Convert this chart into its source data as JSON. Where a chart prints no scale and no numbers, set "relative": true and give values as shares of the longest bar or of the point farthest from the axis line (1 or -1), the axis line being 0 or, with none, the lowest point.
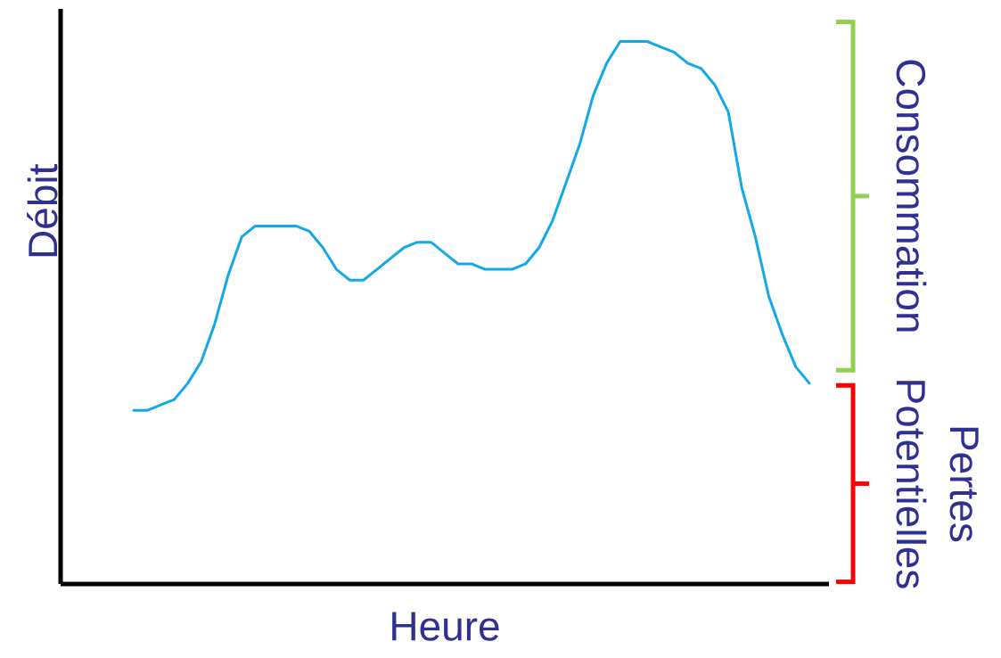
{
  "chart_data": {
    "type": "line",
    "relative": true,
    "xlabel": "Heure",
    "ylabel": "Débit",
    "categories": [
      null,
      null,
      null,
      null,
      null,
      null,
      null,
      null,
      null,
      null,
      null,
      null,
      null,
      null,
      null,
      null,
      null,
      null,
      null,
      null,
      null,
      null,
      null,
      null,
      null,
      null,
      null,
      null,
      null,
      null,
      null,
      null,
      null,
      null,
      null,
      null,
      null,
      null,
      null,
      null,
      null,
      null,
      null,
      null,
      null,
      null,
      null,
      null,
      null,
      null,
      null
    ],
    "series": [
      {
        "color": "#13a8e8",
        "values": [
          0.32,
          0.32,
          0.33,
          0.34,
          0.37,
          0.41,
          0.48,
          0.57,
          0.64,
          0.66,
          0.66,
          0.66,
          0.66,
          0.65,
          0.62,
          0.58,
          0.56,
          0.56,
          0.58,
          0.6,
          0.62,
          0.63,
          0.63,
          0.61,
          0.59,
          0.59,
          0.58,
          0.58,
          0.58,
          0.59,
          0.62,
          0.67,
          0.74,
          0.81,
          0.9,
          0.96,
          1.0,
          1.0,
          1.0,
          0.99,
          0.98,
          0.96,
          0.95,
          0.92,
          0.87,
          0.73,
          0.64,
          0.53,
          0.46,
          0.4,
          0.37
        ]
      }
    ],
    "annotations": [
      "Consommation",
      "Pertes Potentielles"
    ]
  }
}
